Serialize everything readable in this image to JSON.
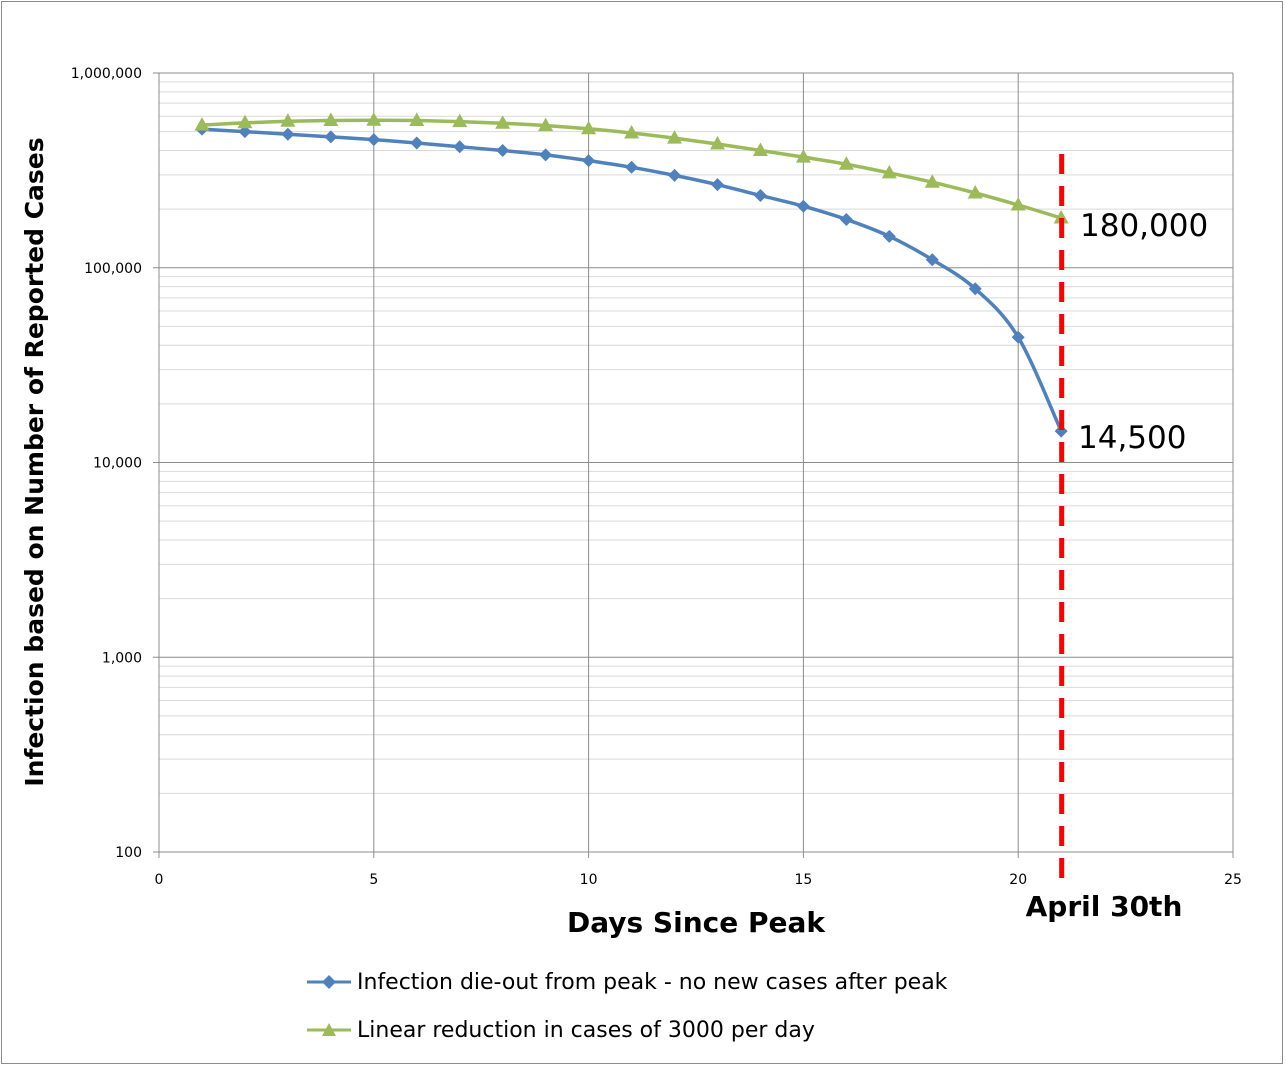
{
  "chart_data": {
    "type": "line",
    "y_scale": "log",
    "xlabel": "Days Since Peak",
    "ylabel": "Infection based on Number of Reported Cases",
    "xlim": [
      0,
      25
    ],
    "ylim": [
      100,
      1000000
    ],
    "x_ticks": [
      "0",
      "5",
      "10",
      "15",
      "20",
      "25"
    ],
    "y_ticks": [
      "100",
      "1,000",
      "10,000",
      "100,000",
      "1,000,000"
    ],
    "grid": true,
    "legend_position": "bottom",
    "series": [
      {
        "name": "Infection die-out from peak - no new cases after peak",
        "color": "#4f81bd",
        "marker": "diamond",
        "x": [
          1,
          2,
          3,
          4,
          5,
          6,
          7,
          8,
          9,
          10,
          11,
          12,
          13,
          14,
          15,
          16,
          17,
          18,
          19,
          20,
          21
        ],
        "y": [
          515000,
          500000,
          485000,
          470000,
          455000,
          437000,
          418000,
          400000,
          380000,
          355000,
          328000,
          298000,
          267000,
          235000,
          207000,
          177000,
          145000,
          110000,
          78000,
          44000,
          14500
        ]
      },
      {
        "name": "Linear reduction in cases of 3000 per day",
        "color": "#9bbb59",
        "marker": "triangle",
        "x": [
          1,
          2,
          3,
          4,
          5,
          6,
          7,
          8,
          9,
          10,
          11,
          12,
          13,
          14,
          15,
          16,
          17,
          18,
          19,
          20,
          21
        ],
        "y": [
          540000,
          555000,
          565000,
          570000,
          572000,
          570000,
          563000,
          552000,
          537000,
          517000,
          492000,
          463000,
          432000,
          400000,
          370000,
          340000,
          307000,
          275000,
          242000,
          210000,
          180000
        ]
      }
    ],
    "annotations": [
      {
        "text": "180,000"
      },
      {
        "text": "14,500"
      },
      {
        "text": "April 30th",
        "x": 21,
        "color": "#ff0000",
        "style": "dashed-vertical-line"
      }
    ]
  }
}
